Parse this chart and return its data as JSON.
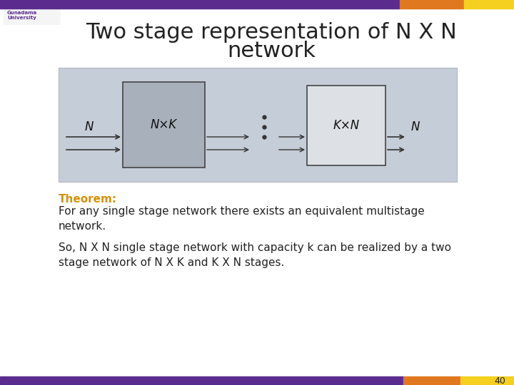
{
  "title_line1": "Two stage representation of N X N",
  "title_line2": "network",
  "title_fontsize": 22,
  "title_color": "#222222",
  "bg_color": "#ffffff",
  "header_bar_purple": "#5b2c8d",
  "header_bar_orange": "#e07820",
  "header_bar_yellow": "#f5d020",
  "footer_bar_purple": "#5b2c8d",
  "footer_bar_orange": "#e07820",
  "footer_bar_yellow": "#f5d020",
  "theorem_label": "Theorem:",
  "theorem_color": "#d4920a",
  "theorem_text": "For any single stage network there exists an equivalent multistage\nnetwork.",
  "so_text": "So, N X N single stage network with capacity k can be realized by a two\nstage network of N X K and K X N stages.",
  "text_color": "#222222",
  "text_fontsize": 11,
  "page_number": "40",
  "diagram_bg": "#c5cdd8",
  "box1_label": "N×K",
  "box2_label": "K×N",
  "N_label_left": "N",
  "N_label_right": "N",
  "arrow_color": "#333333"
}
